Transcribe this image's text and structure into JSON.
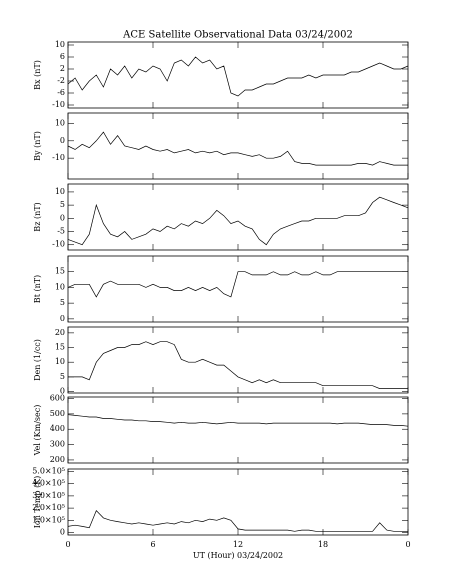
{
  "chart_data": [
    {
      "type": "line",
      "title": "ACE Satellite Observational Data   03/24/2002",
      "ylabel": "Bx (nT)",
      "x": [
        0,
        0.5,
        1,
        1.5,
        2,
        2.5,
        3,
        3.5,
        4,
        4.5,
        5,
        5.5,
        6,
        6.5,
        7,
        7.5,
        8,
        8.5,
        9,
        9.5,
        10,
        10.5,
        11,
        11.5,
        12,
        12.5,
        13,
        13.5,
        14,
        14.5,
        15,
        15.5,
        16,
        16.5,
        17,
        17.5,
        18,
        18.5,
        19,
        19.5,
        20,
        20.5,
        21,
        21.5,
        22,
        22.5,
        23,
        23.5,
        24
      ],
      "series": [
        {
          "name": "Bx",
          "color": "#000000",
          "values": [
            -3,
            -1,
            -5,
            -2,
            0,
            -4,
            2,
            0,
            3,
            -1,
            2,
            1,
            3,
            2,
            -2,
            4,
            5,
            3,
            6,
            4,
            5,
            2,
            3,
            -6,
            -7,
            -5,
            -5,
            -4,
            -3,
            -3,
            -2,
            -1,
            -1,
            -1,
            0,
            -1,
            0,
            0,
            0,
            0,
            1,
            1,
            2,
            3,
            4,
            3,
            2,
            2,
            3
          ]
        }
      ],
      "xlim": [
        0,
        24
      ],
      "ylim": [
        -11,
        11
      ],
      "yticks": [
        -10,
        -6,
        -2,
        2,
        6,
        10
      ]
    },
    {
      "type": "line",
      "ylabel": "By (nT)",
      "x": [
        0,
        0.5,
        1,
        1.5,
        2,
        2.5,
        3,
        3.5,
        4,
        4.5,
        5,
        5.5,
        6,
        6.5,
        7,
        7.5,
        8,
        8.5,
        9,
        9.5,
        10,
        10.5,
        11,
        11.5,
        12,
        12.5,
        13,
        13.5,
        14,
        14.5,
        15,
        15.5,
        16,
        16.5,
        17,
        17.5,
        18,
        18.5,
        19,
        19.5,
        20,
        20.5,
        21,
        21.5,
        22,
        22.5,
        23,
        23.5,
        24
      ],
      "series": [
        {
          "name": "By",
          "color": "#000000",
          "values": [
            -3,
            -5,
            -2,
            -4,
            0,
            5,
            -2,
            3,
            -3,
            -4,
            -5,
            -3,
            -5,
            -6,
            -5,
            -7,
            -6,
            -5,
            -7,
            -6,
            -7,
            -6,
            -8,
            -7,
            -7,
            -8,
            -9,
            -8,
            -10,
            -10,
            -9,
            -6,
            -12,
            -13,
            -13,
            -14,
            -14,
            -14,
            -14,
            -14,
            -14,
            -13,
            -13,
            -14,
            -12,
            -13,
            -14,
            -14,
            -14
          ]
        }
      ],
      "xlim": [
        0,
        24
      ],
      "ylim": [
        -22,
        16
      ],
      "yticks": [
        -10,
        0,
        10
      ]
    },
    {
      "type": "line",
      "ylabel": "Bz (nT)",
      "x": [
        0,
        0.5,
        1,
        1.5,
        2,
        2.5,
        3,
        3.5,
        4,
        4.5,
        5,
        5.5,
        6,
        6.5,
        7,
        7.5,
        8,
        8.5,
        9,
        9.5,
        10,
        10.5,
        11,
        11.5,
        12,
        12.5,
        13,
        13.5,
        14,
        14.5,
        15,
        15.5,
        16,
        16.5,
        17,
        17.5,
        18,
        18.5,
        19,
        19.5,
        20,
        20.5,
        21,
        21.5,
        22,
        22.5,
        23,
        23.5,
        24
      ],
      "series": [
        {
          "name": "Bz",
          "color": "#000000",
          "values": [
            -8,
            -9,
            -10,
            -6,
            5,
            -2,
            -6,
            -7,
            -5,
            -8,
            -7,
            -6,
            -4,
            -5,
            -3,
            -4,
            -2,
            -3,
            -1,
            -2,
            0,
            3,
            1,
            -2,
            -1,
            -3,
            -4,
            -8,
            -10,
            -6,
            -4,
            -3,
            -2,
            -1,
            -1,
            0,
            0,
            0,
            0,
            1,
            1,
            1,
            2,
            6,
            8,
            7,
            6,
            5,
            4
          ]
        }
      ],
      "xlim": [
        0,
        24
      ],
      "ylim": [
        -12,
        13
      ],
      "yticks": [
        -10,
        -5,
        0,
        5,
        10
      ]
    },
    {
      "type": "line",
      "ylabel": "Bt (nT)",
      "x": [
        0,
        0.5,
        1,
        1.5,
        2,
        2.5,
        3,
        3.5,
        4,
        4.5,
        5,
        5.5,
        6,
        6.5,
        7,
        7.5,
        8,
        8.5,
        9,
        9.5,
        10,
        10.5,
        11,
        11.5,
        12,
        12.5,
        13,
        13.5,
        14,
        14.5,
        15,
        15.5,
        16,
        16.5,
        17,
        17.5,
        18,
        18.5,
        19,
        19.5,
        20,
        20.5,
        21,
        21.5,
        22,
        22.5,
        23,
        23.5,
        24
      ],
      "series": [
        {
          "name": "Bt",
          "color": "#000000",
          "values": [
            10,
            11,
            11,
            11,
            7,
            11,
            12,
            11,
            11,
            11,
            11,
            10,
            11,
            10,
            10,
            9,
            9,
            10,
            9,
            10,
            9,
            10,
            8,
            7,
            15,
            15,
            14,
            14,
            14,
            15,
            14,
            14,
            15,
            14,
            14,
            15,
            14,
            14,
            15,
            15,
            15,
            15,
            15,
            15,
            15,
            15,
            15,
            15,
            15
          ]
        }
      ],
      "xlim": [
        0,
        24
      ],
      "ylim": [
        -1,
        20
      ],
      "yticks": [
        0,
        5,
        10,
        15
      ]
    },
    {
      "type": "line",
      "ylabel": "Den (1/cc)",
      "x": [
        0,
        0.5,
        1,
        1.5,
        2,
        2.5,
        3,
        3.5,
        4,
        4.5,
        5,
        5.5,
        6,
        6.5,
        7,
        7.5,
        8,
        8.5,
        9,
        9.5,
        10,
        10.5,
        11,
        11.5,
        12,
        12.5,
        13,
        13.5,
        14,
        14.5,
        15,
        15.5,
        16,
        16.5,
        17,
        17.5,
        18,
        18.5,
        19,
        19.5,
        20,
        20.5,
        21,
        21.5,
        22,
        22.5,
        23,
        23.5,
        24
      ],
      "series": [
        {
          "name": "Den",
          "color": "#000000",
          "values": [
            5,
            5,
            5,
            4,
            10,
            13,
            14,
            15,
            15,
            16,
            16,
            17,
            16,
            17,
            17,
            16,
            11,
            10,
            10,
            11,
            10,
            9,
            9,
            7,
            5,
            4,
            3,
            4,
            3,
            4,
            3,
            3,
            3,
            3,
            3,
            3,
            2,
            2,
            2,
            2,
            2,
            2,
            2,
            2,
            1,
            1,
            1,
            1,
            1
          ]
        }
      ],
      "xlim": [
        0,
        24
      ],
      "ylim": [
        -0.5,
        22
      ],
      "yticks": [
        0,
        5,
        10,
        15,
        20
      ]
    },
    {
      "type": "line",
      "ylabel": "Vel (Km/sec)",
      "x": [
        0,
        0.5,
        1,
        1.5,
        2,
        2.5,
        3,
        3.5,
        4,
        4.5,
        5,
        5.5,
        6,
        6.5,
        7,
        7.5,
        8,
        8.5,
        9,
        9.5,
        10,
        10.5,
        11,
        11.5,
        12,
        12.5,
        13,
        13.5,
        14,
        14.5,
        15,
        15.5,
        16,
        16.5,
        17,
        17.5,
        18,
        18.5,
        19,
        19.5,
        20,
        20.5,
        21,
        21.5,
        22,
        22.5,
        23,
        23.5,
        24
      ],
      "series": [
        {
          "name": "Vel",
          "color": "#000000",
          "values": [
            495,
            490,
            485,
            480,
            480,
            470,
            470,
            465,
            460,
            460,
            455,
            455,
            450,
            450,
            445,
            440,
            445,
            440,
            440,
            445,
            440,
            435,
            440,
            445,
            440,
            440,
            440,
            440,
            435,
            440,
            440,
            440,
            440,
            440,
            440,
            440,
            440,
            440,
            435,
            440,
            440,
            440,
            435,
            430,
            430,
            430,
            425,
            425,
            420
          ]
        }
      ],
      "xlim": [
        0,
        24
      ],
      "ylim": [
        180,
        610
      ],
      "yticks": [
        200,
        300,
        400,
        500,
        600
      ]
    },
    {
      "type": "line",
      "ylabel": "Ion Temp (K)",
      "xlabel": "UT (Hour)  03/24/2002",
      "x": [
        0,
        0.5,
        1,
        1.5,
        2,
        2.5,
        3,
        3.5,
        4,
        4.5,
        5,
        5.5,
        6,
        6.5,
        7,
        7.5,
        8,
        8.5,
        9,
        9.5,
        10,
        10.5,
        11,
        11.5,
        12,
        12.5,
        13,
        13.5,
        14,
        14.5,
        15,
        15.5,
        16,
        16.5,
        17,
        17.5,
        18,
        18.5,
        19,
        19.5,
        20,
        20.5,
        21,
        21.5,
        22,
        22.5,
        23,
        23.5,
        24
      ],
      "series": [
        {
          "name": "Ion Temp",
          "color": "#000000",
          "values": [
            50000,
            60000,
            50000,
            40000,
            180000,
            120000,
            100000,
            90000,
            80000,
            70000,
            80000,
            70000,
            60000,
            70000,
            80000,
            70000,
            90000,
            80000,
            100000,
            90000,
            110000,
            100000,
            120000,
            100000,
            30000,
            20000,
            20000,
            20000,
            20000,
            20000,
            20000,
            20000,
            10000,
            20000,
            20000,
            10000,
            10000,
            10000,
            10000,
            10000,
            10000,
            10000,
            10000,
            10000,
            80000,
            20000,
            10000,
            10000,
            10000
          ]
        }
      ],
      "xlim": [
        0,
        24
      ],
      "ylim": [
        -20000,
        520000
      ],
      "yticks": [
        0,
        {
          "value": 100000,
          "label": "1.0×10⁵"
        },
        {
          "value": 200000,
          "label": "2.0×10⁵"
        },
        {
          "value": 300000,
          "label": "3.0×10⁵"
        },
        {
          "value": 400000,
          "label": "4.0×10⁵"
        },
        {
          "value": 500000,
          "label": "5.0×10⁵"
        }
      ],
      "xticks": [
        0,
        6,
        12,
        18,
        {
          "value": 24,
          "label": "0"
        }
      ]
    }
  ]
}
